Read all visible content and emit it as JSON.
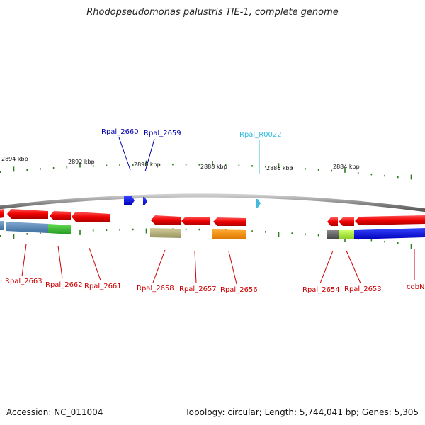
{
  "title": "Rhodopseudomonas palustris TIE-1, complete genome",
  "footer": {
    "accession": "Accession: NC_011004",
    "summary": "Topology: circular; Length: 5,744,041 bp; Genes: 5,305"
  },
  "colors": {
    "backbone": "#8a8a8a",
    "tick": "#2e7d1e",
    "label_red": "#cc0000",
    "label_blue": "#0000aa",
    "label_cyan": "#33bbdd"
  },
  "kbp_labels": [
    "2894 kbp",
    "2892 kbp",
    "2890 kbp",
    "2888 kbp",
    "2886 kbp",
    "2884 kbp"
  ],
  "top_labels": [
    {
      "text": "Rpal_2660",
      "color": "#0000aa"
    },
    {
      "text": "Rpal_2659",
      "color": "#0000aa"
    },
    {
      "text": "Rpal_R0022",
      "color": "#33bbdd"
    }
  ],
  "bottom_labels": [
    {
      "text": "Rpal_2663"
    },
    {
      "text": "Rpal_2662"
    },
    {
      "text": "Rpal_2661"
    },
    {
      "text": "Rpal_2658"
    },
    {
      "text": "Rpal_2657"
    },
    {
      "text": "Rpal_2656"
    },
    {
      "text": "Rpal_2654"
    },
    {
      "text": "Rpal_2653"
    },
    {
      "text": "cobN"
    }
  ],
  "feature_colors": {
    "cds": "#ee0000",
    "forward_gene": "#1a1acc",
    "rna": "#44bbdd",
    "steel": "#4f7fb0",
    "green": "#33bb33",
    "khaki": "#b5b07a",
    "orange": "#ee8800",
    "grey": "#555555",
    "lime": "#aaee44",
    "blue": "#0011dd"
  }
}
